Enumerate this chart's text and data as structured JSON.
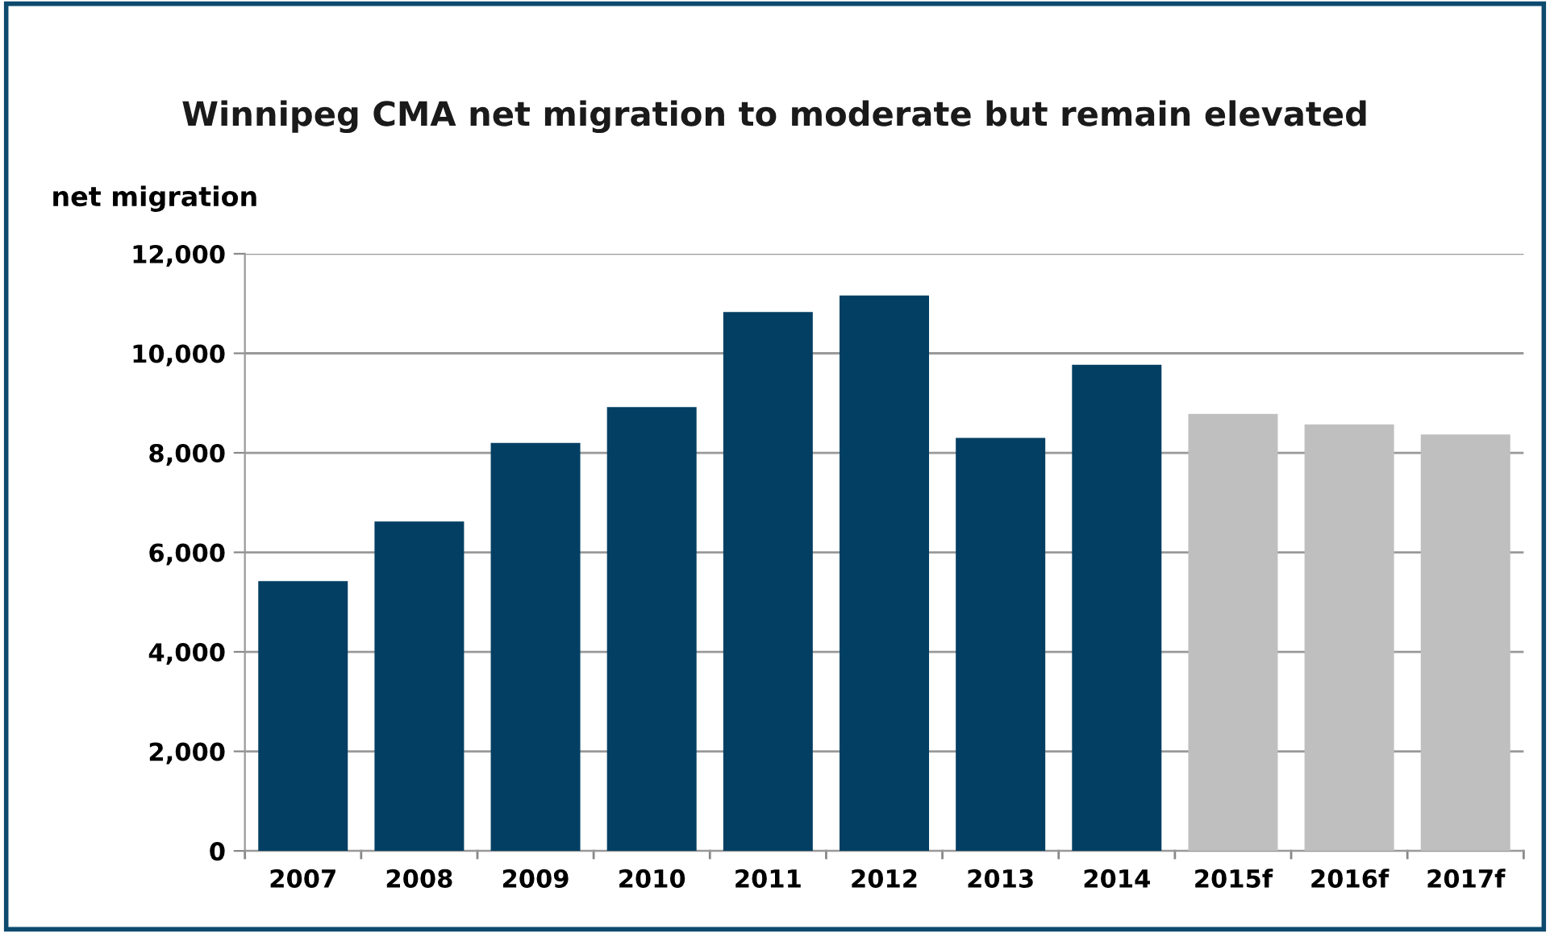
{
  "chart_data": {
    "type": "bar",
    "title": "Winnipeg CMA net migration to moderate but remain elevated",
    "ylabel": "net migration",
    "categories": [
      "2007",
      "2008",
      "2009",
      "2010",
      "2011",
      "2012",
      "2013",
      "2014",
      "2015f",
      "2016f",
      "2017f"
    ],
    "values": [
      5420,
      6620,
      8200,
      8920,
      10830,
      11160,
      8300,
      9770,
      8780,
      8570,
      8370
    ],
    "colors": [
      "#033f63",
      "#033f63",
      "#033f63",
      "#033f63",
      "#033f63",
      "#033f63",
      "#033f63",
      "#033f63",
      "#bfbfbf",
      "#bfbfbf",
      "#bfbfbf"
    ],
    "ylim": [
      0,
      12000
    ],
    "yticks": [
      {
        "value": 0,
        "label": "0"
      },
      {
        "value": 2000,
        "label": "2,000"
      },
      {
        "value": 4000,
        "label": "4,000"
      },
      {
        "value": 6000,
        "label": "6,000"
      },
      {
        "value": 8000,
        "label": "8,000"
      },
      {
        "value": 10000,
        "label": "10,000"
      },
      {
        "value": 12000,
        "label": "12,000"
      }
    ],
    "grid": "y",
    "legend": false
  }
}
